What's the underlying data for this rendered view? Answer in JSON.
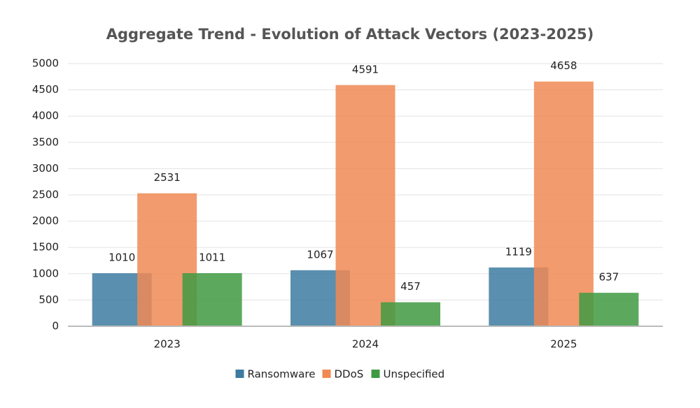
{
  "chart_data": {
    "type": "bar",
    "title": "Aggregate Trend - Evolution of Attack Vectors (2023-2025)",
    "categories": [
      "2023",
      "2024",
      "2025"
    ],
    "series": [
      {
        "name": "Ransomware",
        "color": "#3d7ba1",
        "values": [
          1010,
          1067,
          1119
        ]
      },
      {
        "name": "DDoS",
        "color": "#f08a55",
        "values": [
          2531,
          4591,
          4658
        ]
      },
      {
        "name": "Unspecified",
        "color": "#3f9a42",
        "values": [
          1011,
          457,
          637
        ]
      }
    ],
    "ylim": [
      0,
      5000
    ],
    "yticks": [
      0,
      500,
      1000,
      1500,
      2000,
      2500,
      3000,
      3500,
      4000,
      4500,
      5000
    ],
    "grid": true,
    "legend": "bottom"
  }
}
